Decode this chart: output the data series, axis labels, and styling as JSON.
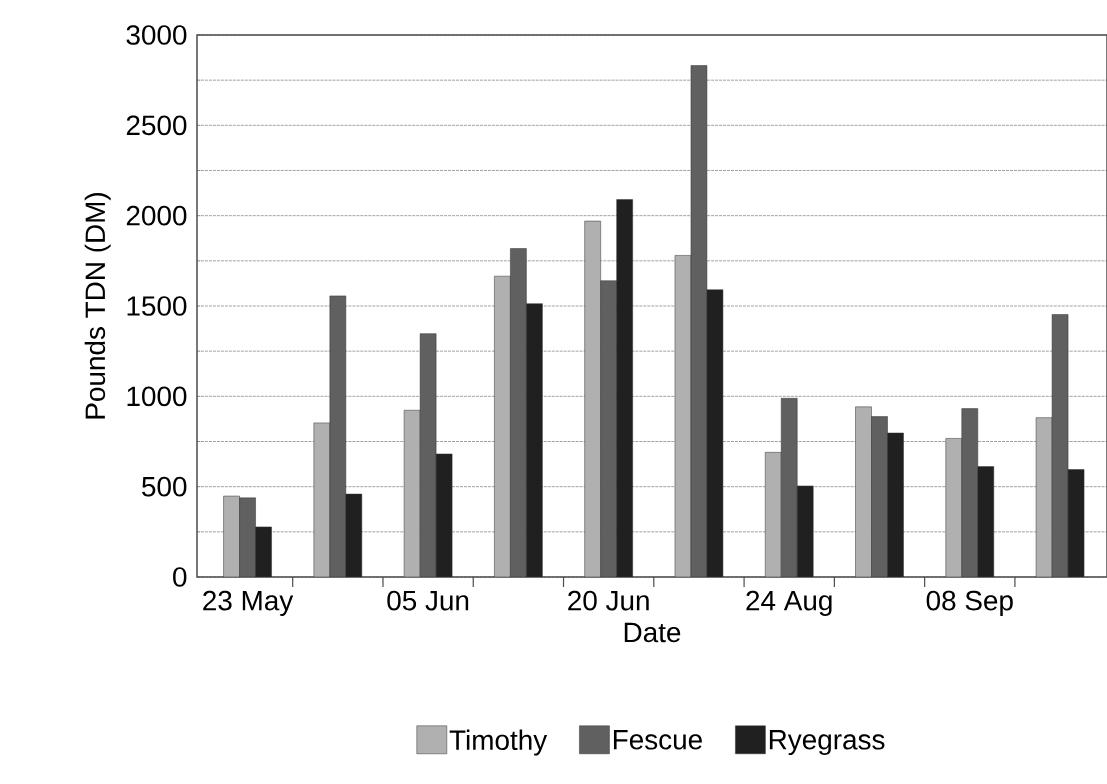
{
  "chart_data": {
    "type": "bar",
    "xlabel": "Date",
    "ylabel": "Pounds TDN (DM)",
    "categories": [
      "23 May",
      null,
      "05 Jun",
      null,
      "20 Jun",
      null,
      "24 Aug",
      null,
      "08 Sep",
      null
    ],
    "series": [
      {
        "name": "Timothy",
        "color": "#b0b0b0",
        "values": [
          448,
          853,
          923,
          1665,
          1970,
          1780,
          690,
          942,
          767,
          882
        ]
      },
      {
        "name": "Fescue",
        "color": "#606060",
        "values": [
          438,
          1556,
          1347,
          1818,
          1640,
          2831,
          989,
          888,
          932,
          1453
        ]
      },
      {
        "name": "Ryegrass",
        "color": "#202020",
        "values": [
          277,
          459,
          681,
          1513,
          2089,
          1590,
          504,
          797,
          611,
          595
        ]
      }
    ],
    "ylim": [
      0,
      3000
    ],
    "yticks": [
      0,
      {
        "value": 250,
        "label": null
      },
      500,
      {
        "value": 750,
        "label": null
      },
      1000,
      {
        "value": 1250,
        "label": null
      },
      1500,
      {
        "value": 1750,
        "label": null
      },
      2000,
      {
        "value": 2250,
        "label": null
      },
      2500,
      {
        "value": 2750,
        "label": null
      },
      3000
    ],
    "grid": "y",
    "legend": "bottom"
  }
}
